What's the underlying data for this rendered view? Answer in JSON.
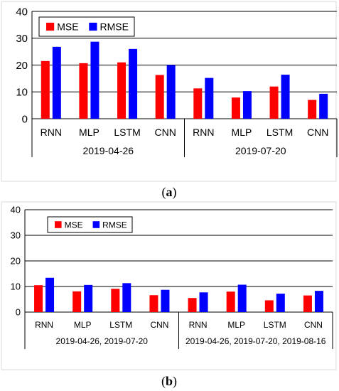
{
  "colors": {
    "mse": "#ff0000",
    "rmse": "#0000ff",
    "grid": "#000000",
    "frame": "#d9d9d9"
  },
  "chart_data": [
    {
      "panel_label": {
        "open": "(",
        "letter": "a",
        "close": ")"
      },
      "type": "bar",
      "ylim": [
        0,
        40
      ],
      "yticks": [
        0,
        10,
        20,
        30,
        40
      ],
      "grid": true,
      "legend": "top-left",
      "categories": [
        "RNN",
        "MLP",
        "LSTM",
        "CNN",
        "RNN",
        "MLP",
        "LSTM",
        "CNN"
      ],
      "groups": [
        {
          "label": "2019-04-26"
        },
        {
          "label": "2019-07-20"
        }
      ],
      "series": [
        {
          "name": "MSE",
          "values": [
            21.5,
            20.7,
            21.0,
            16.3,
            11.3,
            7.9,
            12.0,
            7.0
          ]
        },
        {
          "name": "RMSE",
          "values": [
            26.8,
            28.7,
            26.0,
            20.0,
            15.2,
            10.3,
            16.4,
            9.3
          ]
        }
      ]
    },
    {
      "panel_label": {
        "open": "(",
        "letter": "b",
        "close": ")"
      },
      "type": "bar",
      "ylim": [
        0,
        40
      ],
      "yticks": [
        0,
        10,
        20,
        30,
        40
      ],
      "grid": true,
      "legend": "top-left",
      "categories": [
        "RNN",
        "MLP",
        "LSTM",
        "CNN",
        "RNN",
        "MLP",
        "LSTM",
        "CNN"
      ],
      "groups": [
        {
          "label": "2019-04-26, 2019-07-20"
        },
        {
          "label": "2019-04-26, 2019-07-20, 2019-08-16"
        }
      ],
      "series": [
        {
          "name": "MSE",
          "values": [
            10.5,
            8.1,
            9.1,
            6.6,
            5.5,
            8.0,
            4.6,
            6.5
          ]
        },
        {
          "name": "RMSE",
          "values": [
            13.4,
            10.6,
            11.3,
            8.7,
            7.7,
            10.7,
            7.2,
            8.3
          ]
        }
      ]
    }
  ]
}
